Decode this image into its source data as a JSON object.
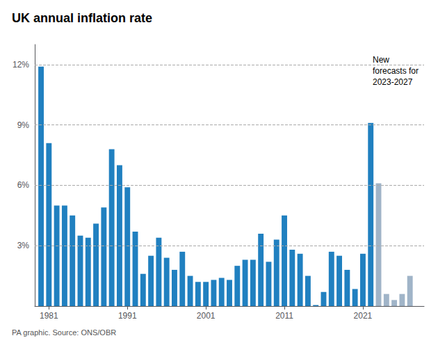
{
  "chart_data": {
    "type": "bar",
    "title": "UK annual inflation rate",
    "source": "PA graphic. Source: ONS/OBR",
    "annotation": "New\nforecasts for\n2023-2027",
    "x": [
      1980,
      1981,
      1982,
      1983,
      1984,
      1985,
      1986,
      1987,
      1988,
      1989,
      1990,
      1991,
      1992,
      1993,
      1994,
      1995,
      1996,
      1997,
      1998,
      1999,
      2000,
      2001,
      2002,
      2003,
      2004,
      2005,
      2006,
      2007,
      2008,
      2009,
      2010,
      2011,
      2012,
      2013,
      2014,
      2015,
      2016,
      2017,
      2018,
      2019,
      2020,
      2021,
      2022,
      2023,
      2024,
      2025,
      2026,
      2027
    ],
    "values": [
      11.9,
      8.1,
      5.0,
      5.0,
      4.5,
      3.5,
      3.4,
      4.1,
      4.9,
      7.8,
      7.0,
      5.9,
      3.7,
      1.6,
      2.5,
      3.4,
      2.4,
      1.8,
      2.7,
      1.5,
      1.2,
      1.2,
      1.3,
      1.4,
      1.3,
      2.0,
      2.3,
      2.3,
      3.6,
      2.2,
      3.3,
      4.5,
      2.8,
      2.6,
      1.5,
      0.05,
      0.7,
      2.7,
      2.5,
      1.8,
      0.85,
      2.6,
      9.1,
      6.1,
      0.6,
      0.3,
      0.6,
      1.5
    ],
    "colors": [
      "#2080c0",
      "#2080c0",
      "#2080c0",
      "#2080c0",
      "#2080c0",
      "#2080c0",
      "#2080c0",
      "#2080c0",
      "#2080c0",
      "#2080c0",
      "#2080c0",
      "#2080c0",
      "#2080c0",
      "#2080c0",
      "#2080c0",
      "#2080c0",
      "#2080c0",
      "#2080c0",
      "#2080c0",
      "#2080c0",
      "#2080c0",
      "#2080c0",
      "#2080c0",
      "#2080c0",
      "#2080c0",
      "#2080c0",
      "#2080c0",
      "#2080c0",
      "#2080c0",
      "#2080c0",
      "#2080c0",
      "#2080c0",
      "#2080c0",
      "#2080c0",
      "#2080c0",
      "#2080c0",
      "#2080c0",
      "#2080c0",
      "#2080c0",
      "#2080c0",
      "#2080c0",
      "#2080c0",
      "#2080c0",
      "#a0b4c8",
      "#a0b4c8",
      "#a0b4c8",
      "#a0b4c8",
      "#a0b4c8"
    ],
    "xlim": [
      1979.2,
      2028.8
    ],
    "xticks": [
      1981,
      1991,
      2001,
      2011,
      2021
    ],
    "ylim": [
      0,
      13.0
    ],
    "yticks": [
      {
        "value": 3,
        "label": "3%"
      },
      {
        "value": 6,
        "label": "6%"
      },
      {
        "value": 9,
        "label": "9%"
      },
      {
        "value": 12,
        "label": "12%"
      }
    ],
    "grid": true
  }
}
